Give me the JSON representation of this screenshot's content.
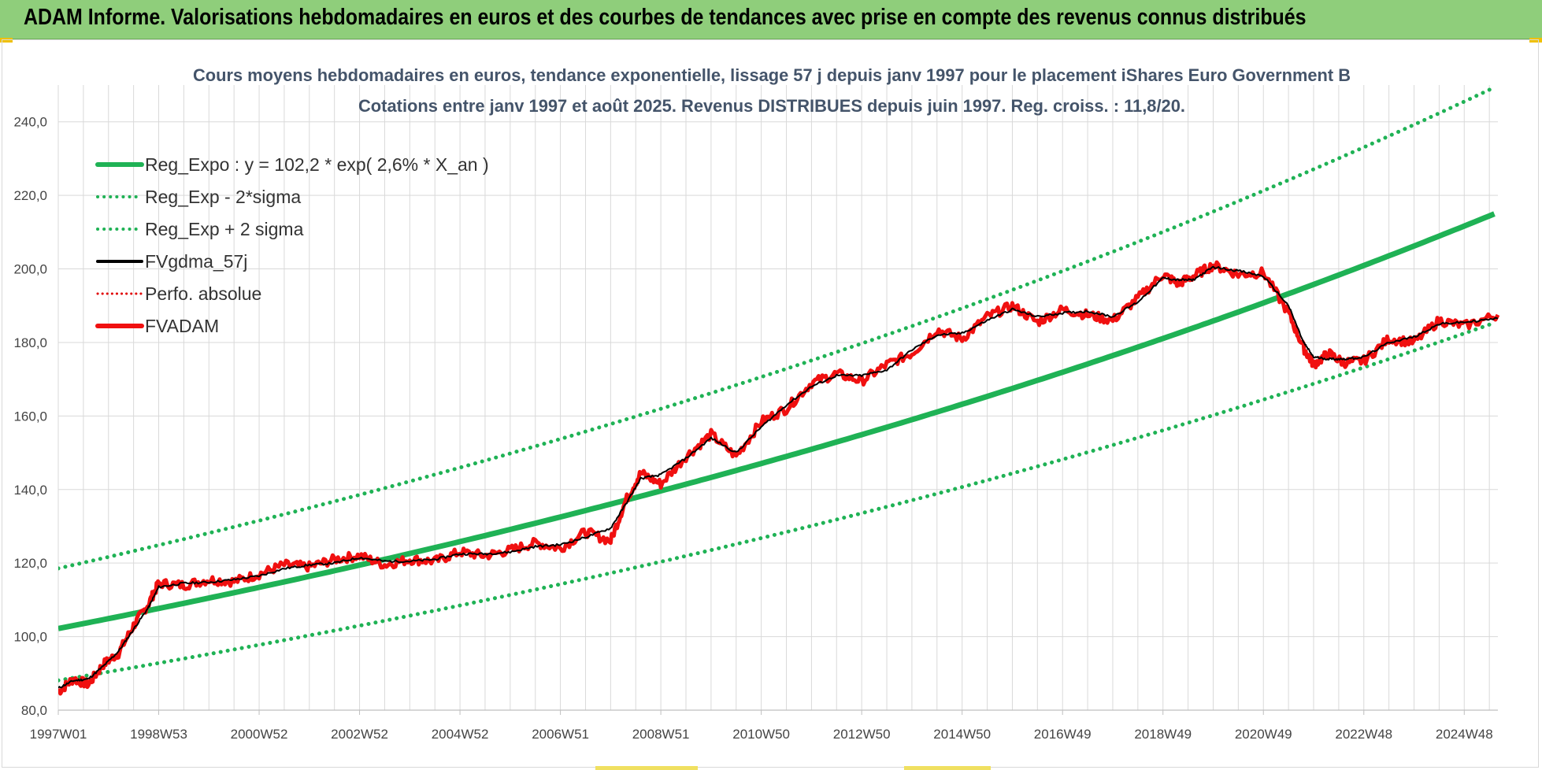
{
  "header": {
    "title": "ADAM Informe. Valorisations hebdomadaires en euros et des courbes de tendances avec prise en compte des revenus connus distribués"
  },
  "colors": {
    "header_bg": "#8fce7b",
    "trend": "#1fb255",
    "band": "#1fb255",
    "smooth": "#000000",
    "perf": "#e00000",
    "fvadam": "#f01010",
    "grid": "#d9d9d9"
  },
  "chart_data": {
    "type": "line",
    "title_line1": "Cours moyens hebdomadaires en euros, tendance exponentielle, lissage 57 j depuis janv 1997 pour le placement iShares Euro Government B",
    "title_line2": "Cotations entre janv 1997 et août 2025.  Revenus DISTRIBUES depuis juin 1997.  Reg. croiss. : 11,8/20.",
    "xlabel": "",
    "ylabel": "",
    "ylim": [
      80,
      250
    ],
    "xlim": [
      1997.0,
      2025.67
    ],
    "y_ticks": [
      {
        "value": 80,
        "label": "80,0"
      },
      {
        "value": 100,
        "label": "100,0"
      },
      {
        "value": 120,
        "label": "120,0"
      },
      {
        "value": 140,
        "label": "140,0"
      },
      {
        "value": 160,
        "label": "160,0"
      },
      {
        "value": 180,
        "label": "180,0"
      },
      {
        "value": 200,
        "label": "200,0"
      },
      {
        "value": 220,
        "label": "220,0"
      },
      {
        "value": 240,
        "label": "240,0"
      }
    ],
    "x_ticks": [
      {
        "value": 1997.0,
        "label": "1997W01"
      },
      {
        "value": 1999.0,
        "label": "1998W53"
      },
      {
        "value": 2001.0,
        "label": "2000W52"
      },
      {
        "value": 2003.0,
        "label": "2002W52"
      },
      {
        "value": 2005.0,
        "label": "2004W52"
      },
      {
        "value": 2007.0,
        "label": "2006W51"
      },
      {
        "value": 2009.0,
        "label": "2008W51"
      },
      {
        "value": 2011.0,
        "label": "2010W50"
      },
      {
        "value": 2013.0,
        "label": "2012W50"
      },
      {
        "value": 2015.0,
        "label": "2014W50"
      },
      {
        "value": 2017.0,
        "label": "2016W49"
      },
      {
        "value": 2019.0,
        "label": "2018W49"
      },
      {
        "value": 2021.0,
        "label": "2020W49"
      },
      {
        "value": 2023.0,
        "label": "2022W48"
      },
      {
        "value": 2025.0,
        "label": "2024W48"
      }
    ],
    "grid": true,
    "legend_position": "top-left",
    "regression": {
      "a": 102.2,
      "rate": 0.026,
      "sigma_factor": 1.16
    },
    "series": [
      {
        "name": "Reg_Expo : y = 102,2 * exp( 2,6% *  X_an )",
        "style": "solid-thick",
        "color": "#1fb255",
        "x": [
          1997.0,
          2025.67
        ],
        "values": [
          102.2,
          215.0
        ]
      },
      {
        "name": "Reg_Exp - 2*sigma",
        "style": "dotted",
        "color": "#1fb255",
        "x": [
          1997.0,
          2025.67
        ],
        "values": [
          88.1,
          185.4
        ]
      },
      {
        "name": "Reg_Exp + 2 sigma",
        "style": "dotted",
        "color": "#1fb255",
        "x": [
          1997.0,
          2025.67
        ],
        "values": [
          118.6,
          249.5
        ]
      },
      {
        "name": "FVgdma_57j",
        "style": "solid",
        "color": "#000000",
        "x": [
          1997.0,
          1997.3,
          1997.6,
          1997.9,
          1998.2,
          1998.5,
          1998.8,
          1999.0,
          1999.5,
          2000.0,
          2000.5,
          2001.0,
          2001.5,
          2002.0,
          2002.5,
          2003.0,
          2003.5,
          2004.0,
          2004.5,
          2005.0,
          2005.5,
          2006.0,
          2006.5,
          2007.0,
          2007.5,
          2008.0,
          2008.3,
          2008.6,
          2009.0,
          2009.5,
          2010.0,
          2010.5,
          2011.0,
          2011.5,
          2012.0,
          2012.5,
          2013.0,
          2013.5,
          2014.0,
          2014.5,
          2015.0,
          2015.5,
          2016.0,
          2016.5,
          2017.0,
          2017.5,
          2018.0,
          2018.5,
          2019.0,
          2019.3,
          2019.6,
          2020.0,
          2020.5,
          2021.0,
          2021.5,
          2021.8,
          2022.0,
          2022.3,
          2022.6,
          2023.0,
          2023.5,
          2024.0,
          2024.5,
          2025.0,
          2025.67
        ],
        "values": [
          86.0,
          88.0,
          88.5,
          92.0,
          96.0,
          102.0,
          108.0,
          113.5,
          114.5,
          114.8,
          115.5,
          116.5,
          118.5,
          119.5,
          120.0,
          121.5,
          120.5,
          120.5,
          121.0,
          122.5,
          122.5,
          123.0,
          124.5,
          125.0,
          127.0,
          129.5,
          136.0,
          143.0,
          144.0,
          148.5,
          154.0,
          150.0,
          157.0,
          163.0,
          168.0,
          171.0,
          171.0,
          172.5,
          178.0,
          182.0,
          182.5,
          186.0,
          189.0,
          187.0,
          188.0,
          188.5,
          187.0,
          191.0,
          197.5,
          197.0,
          197.0,
          200.5,
          199.5,
          198.0,
          190.0,
          180.0,
          176.0,
          175.5,
          175.5,
          176.0,
          180.0,
          181.5,
          185.0,
          185.5,
          186.5
        ]
      },
      {
        "name": "Perfo. absolue",
        "style": "dotted",
        "color": "#e00000",
        "x": [
          1997.0,
          2025.67
        ],
        "values": [
          86.0,
          186.5
        ]
      },
      {
        "name": "FVADAM",
        "style": "solid-thick",
        "color": "#f01010",
        "x": [
          1997.0,
          1997.3,
          1997.6,
          1997.9,
          1998.2,
          1998.5,
          1998.8,
          1999.0,
          1999.5,
          2000.0,
          2000.5,
          2001.0,
          2001.5,
          2002.0,
          2002.5,
          2003.0,
          2003.5,
          2004.0,
          2004.5,
          2005.0,
          2005.5,
          2006.0,
          2006.5,
          2007.0,
          2007.5,
          2008.0,
          2008.3,
          2008.6,
          2009.0,
          2009.5,
          2010.0,
          2010.5,
          2011.0,
          2011.5,
          2012.0,
          2012.5,
          2013.0,
          2013.5,
          2014.0,
          2014.5,
          2015.0,
          2015.5,
          2016.0,
          2016.5,
          2017.0,
          2017.5,
          2018.0,
          2018.5,
          2019.0,
          2019.3,
          2019.6,
          2020.0,
          2020.5,
          2021.0,
          2021.5,
          2021.8,
          2022.0,
          2022.3,
          2022.6,
          2023.0,
          2023.5,
          2024.0,
          2024.5,
          2025.0,
          2025.67
        ],
        "values": [
          85.0,
          88.5,
          87.0,
          92.5,
          95.5,
          103.0,
          109.0,
          114.5,
          114.0,
          115.5,
          115.0,
          117.0,
          119.5,
          119.0,
          121.0,
          122.0,
          119.5,
          121.0,
          120.5,
          123.0,
          122.0,
          123.5,
          125.5,
          124.0,
          128.5,
          126.0,
          137.0,
          144.5,
          141.5,
          149.0,
          155.0,
          149.0,
          158.5,
          162.0,
          169.0,
          171.5,
          169.5,
          174.0,
          177.0,
          183.5,
          181.0,
          187.0,
          190.0,
          185.5,
          189.0,
          187.5,
          186.0,
          192.0,
          198.5,
          196.0,
          198.0,
          201.0,
          198.5,
          199.0,
          188.0,
          178.5,
          174.0,
          177.0,
          174.5,
          175.0,
          181.0,
          180.0,
          186.0,
          184.5,
          187.5
        ]
      }
    ]
  }
}
